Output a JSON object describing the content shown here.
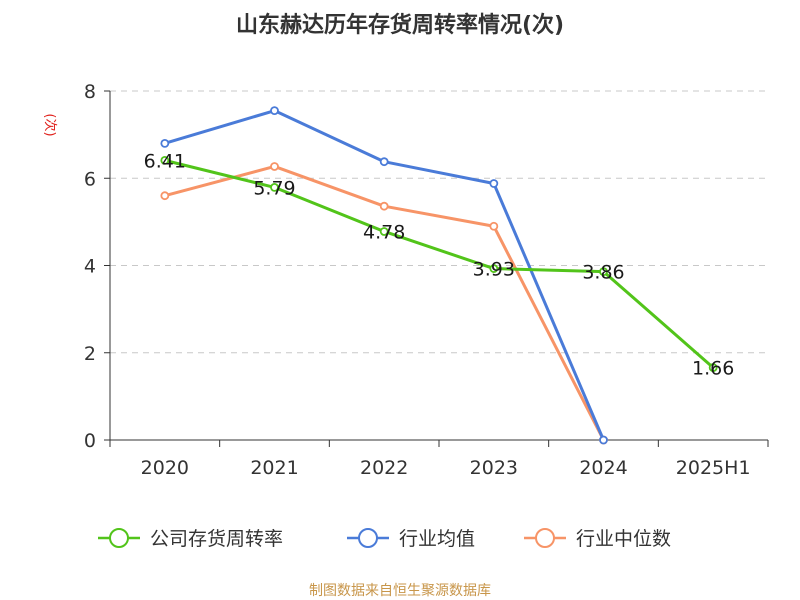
{
  "chart_data": {
    "type": "line",
    "title": "山东赫达历年存货周转率情况(次)",
    "ylabel": "(次)",
    "xlabel": "",
    "categories": [
      "2020",
      "2021",
      "2022",
      "2023",
      "2024",
      "2025H1"
    ],
    "ylim": [
      0,
      8
    ],
    "yticks": [
      0,
      2,
      4,
      6,
      8
    ],
    "grid": true,
    "legend_position": "bottom",
    "series": [
      {
        "name": "公司存货周转率",
        "color": "#52c41a",
        "values": [
          6.41,
          5.79,
          4.78,
          3.93,
          3.86,
          1.66
        ],
        "labels": [
          "6.41",
          "5.79",
          "4.78",
          "3.93",
          "3.86",
          "1.66"
        ]
      },
      {
        "name": "行业均值",
        "color": "#4a7bd8",
        "values": [
          6.8,
          7.55,
          6.38,
          5.88,
          0,
          null
        ]
      },
      {
        "name": "行业中位数",
        "color": "#f79467",
        "values": [
          5.6,
          6.27,
          5.36,
          4.9,
          0,
          null
        ]
      }
    ]
  },
  "source": "制图数据来自恒生聚源数据库"
}
